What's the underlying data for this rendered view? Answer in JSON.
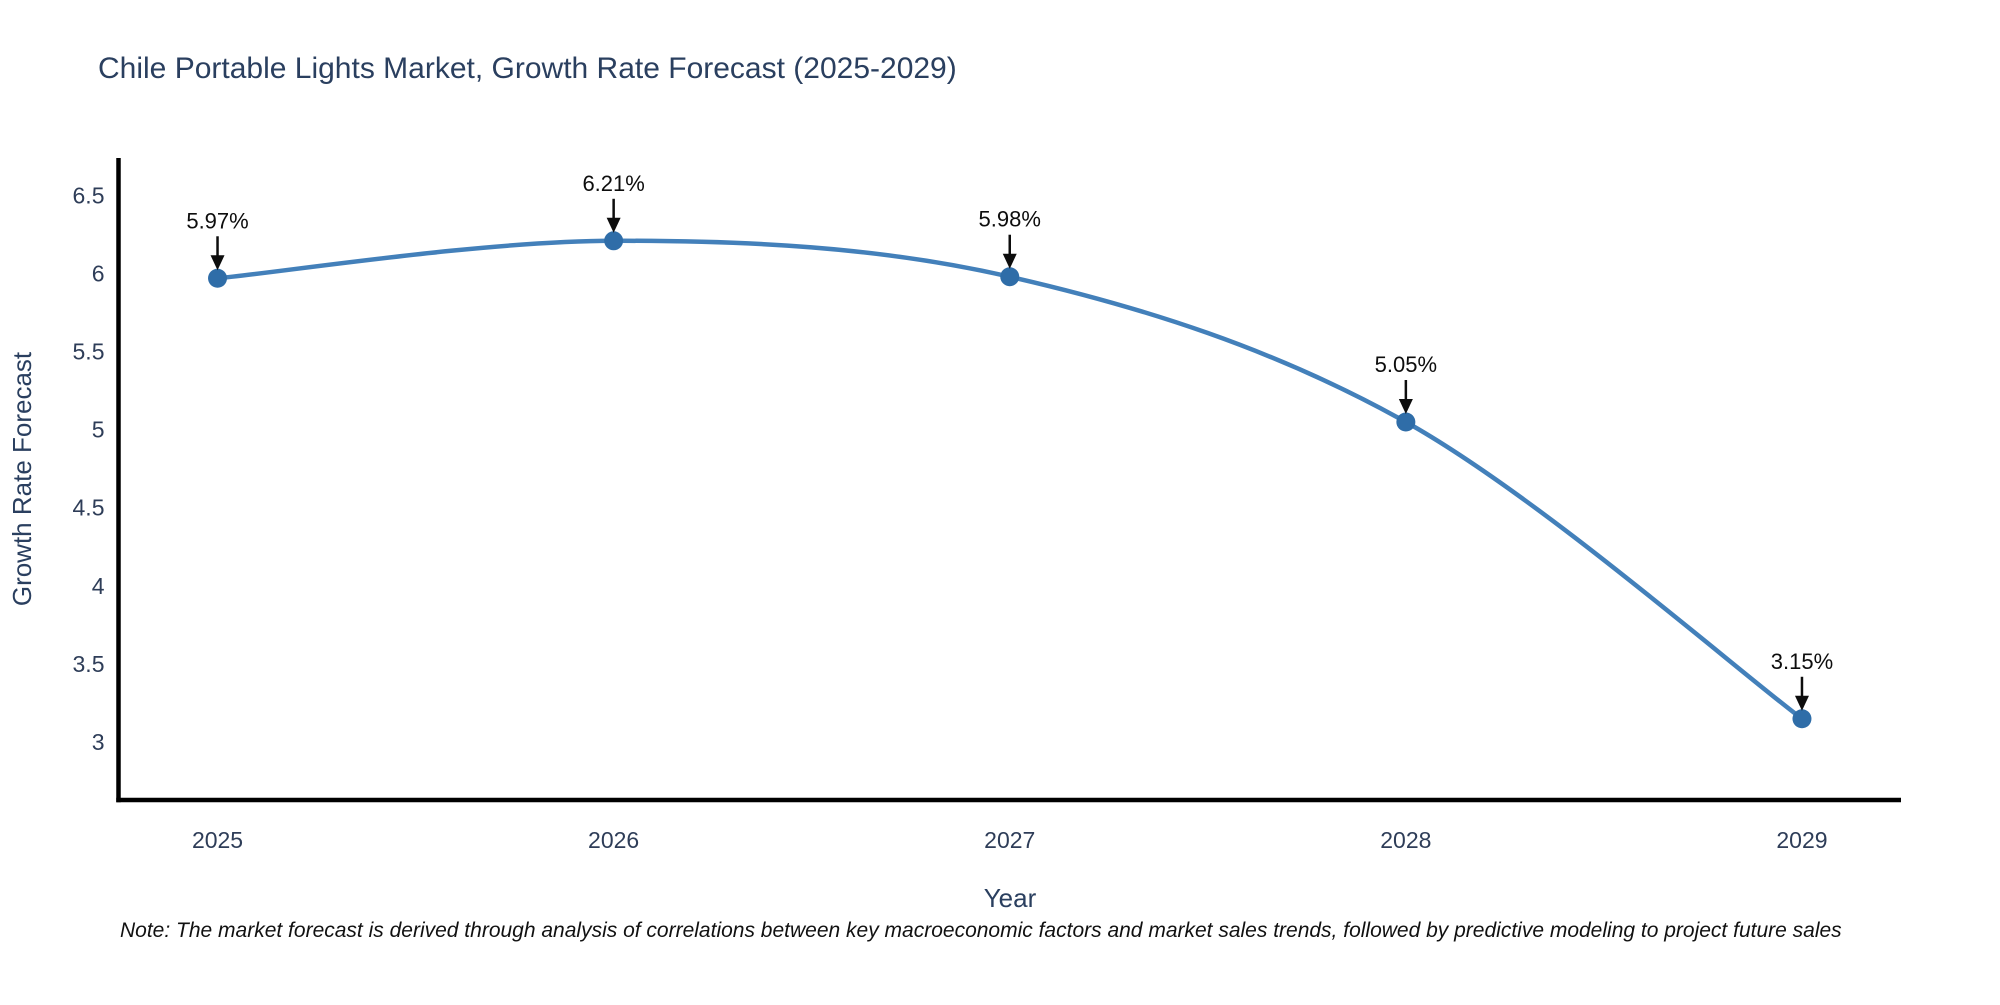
{
  "page": {
    "background": "#ffffff"
  },
  "chart_data": {
    "type": "line",
    "title": "Chile Portable Lights Market, Growth Rate Forecast (2025-2029)",
    "xlabel": "Year",
    "ylabel": "Growth Rate Forecast",
    "x": [
      2025,
      2026,
      2027,
      2028,
      2029
    ],
    "xtick_labels": [
      "2025",
      "2026",
      "2027",
      "2028",
      "2029"
    ],
    "series": [
      {
        "name": "Growth Rate Forecast",
        "values": [
          5.97,
          6.21,
          5.98,
          5.05,
          3.15
        ]
      }
    ],
    "point_labels": [
      "5.97%",
      "6.21%",
      "5.98%",
      "5.05%",
      "3.15%"
    ],
    "yticks": [
      3,
      3.5,
      4,
      4.5,
      5,
      5.5,
      6,
      6.5
    ],
    "ytick_labels": [
      "3",
      "3.5",
      "4",
      "4.5",
      "5",
      "5.5",
      "6",
      "6.5"
    ],
    "xlim": [
      2024.75,
      2029.25
    ],
    "ylim": [
      2.63,
      6.74
    ],
    "grid": false,
    "legend": "none",
    "line_shape": "spline",
    "annotation_style": "label-above-with-down-arrow",
    "colors": {
      "line": "#4380ba",
      "marker": "#2f6da8",
      "axis": "#000000",
      "tick_text": "#2e3d58",
      "title_text": "#2a3f5f",
      "annotation": "#0d0d0d"
    }
  },
  "footnote": {
    "text": "Note: The market forecast is derived through analysis of correlations between key macroeconomic factors and market sales trends, followed by predictive modeling to project future sales"
  }
}
